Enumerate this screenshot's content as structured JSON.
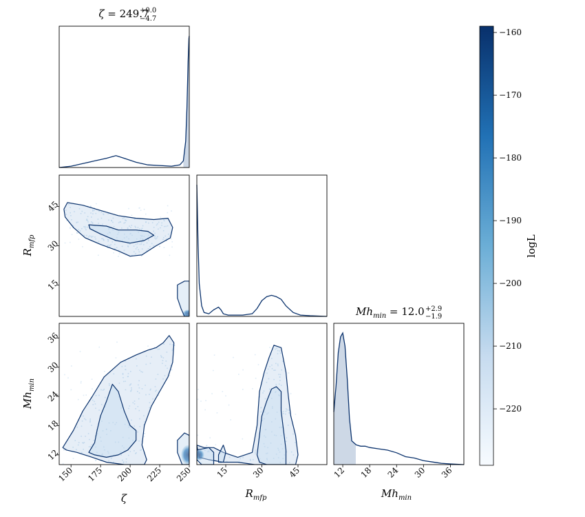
{
  "chart_data": {
    "type": "corner",
    "parameters": [
      "ζ",
      "Rmfp",
      "Mhmin"
    ],
    "axis_labels": {
      "zeta": "ζ",
      "rmfp_base": "R",
      "rmfp_sub": "mfp",
      "mh_base": "Mh",
      "mh_sub": "min"
    },
    "ranges": {
      "zeta": [
        140,
        250
      ],
      "rmfp": [
        3,
        57
      ],
      "mh": [
        10,
        39
      ]
    },
    "ticks": {
      "zeta": [
        "150",
        "175",
        "200",
        "225",
        "250"
      ],
      "rmfp_x": [
        "15",
        "30",
        "45"
      ],
      "rmfp_y": [
        "15",
        "30",
        "45"
      ],
      "mh_x": [
        "12",
        "18",
        "24",
        "30",
        "36"
      ],
      "mh_y": [
        "12",
        "18",
        "24",
        "30",
        "36"
      ]
    },
    "titles": {
      "zeta": {
        "prefix": "ζ = ",
        "value": "249.7",
        "plus": "+0.0",
        "minus": "−4.7"
      },
      "mh": {
        "prefix_base": "Mh",
        "prefix_sub": "min",
        "eq": " = ",
        "value": "12.0",
        "plus": "+2.9",
        "minus": "−1.9"
      }
    },
    "marginals": {
      "zeta": {
        "x": [
          140,
          150,
          160,
          170,
          180,
          188,
          195,
          205,
          215,
          225,
          235,
          242,
          245,
          247,
          248,
          249,
          249.7,
          250
        ],
        "density": [
          0.0,
          0.01,
          0.03,
          0.05,
          0.07,
          0.09,
          0.07,
          0.04,
          0.02,
          0.015,
          0.01,
          0.02,
          0.05,
          0.2,
          0.45,
          0.8,
          0.98,
          1.0
        ],
        "shade": [
          245.0,
          250
        ]
      },
      "rmfp": {
        "x": [
          3,
          3.5,
          4,
          5,
          6,
          8,
          10,
          12,
          13,
          14,
          16,
          18,
          22,
          26,
          28,
          30,
          32,
          34,
          36,
          38,
          40,
          43,
          46,
          50,
          57
        ],
        "density": [
          1.0,
          0.55,
          0.25,
          0.08,
          0.03,
          0.02,
          0.05,
          0.07,
          0.05,
          0.02,
          0.01,
          0.01,
          0.01,
          0.02,
          0.06,
          0.12,
          0.15,
          0.16,
          0.15,
          0.13,
          0.08,
          0.03,
          0.01,
          0.005,
          0.0
        ]
      },
      "mh": {
        "x": [
          10,
          10.5,
          11,
          11.5,
          12,
          12.5,
          13,
          13.5,
          14,
          15,
          16,
          17,
          18,
          20,
          22,
          24,
          26,
          28,
          30,
          32,
          34,
          36,
          39
        ],
        "density": [
          0.4,
          0.6,
          0.85,
          0.97,
          1.0,
          0.9,
          0.65,
          0.35,
          0.18,
          0.15,
          0.14,
          0.14,
          0.13,
          0.12,
          0.11,
          0.09,
          0.06,
          0.05,
          0.03,
          0.02,
          0.01,
          0.005,
          0.0
        ],
        "shade": [
          10,
          14.9
        ]
      }
    },
    "contours_2d": {
      "zeta_rmfp": [
        [
          [
            147,
            46.5
          ],
          [
            160,
            45.5
          ],
          [
            175,
            43.5
          ],
          [
            190,
            41.5
          ],
          [
            205,
            40.5
          ],
          [
            220,
            40
          ],
          [
            232,
            40.5
          ],
          [
            236,
            37
          ],
          [
            234,
            33
          ],
          [
            222,
            30
          ],
          [
            210,
            26.5
          ],
          [
            200,
            26
          ],
          [
            190,
            28
          ],
          [
            175,
            30.5
          ],
          [
            162,
            33
          ],
          [
            152,
            37
          ],
          [
            145,
            41
          ],
          [
            144,
            44
          ]
        ],
        [
          [
            165,
            38
          ],
          [
            180,
            37.5
          ],
          [
            190,
            36
          ],
          [
            205,
            36
          ],
          [
            215,
            35.5
          ],
          [
            220,
            34
          ],
          [
            212,
            32
          ],
          [
            200,
            31
          ],
          [
            188,
            32
          ],
          [
            175,
            34.5
          ],
          [
            166,
            36.5
          ]
        ],
        [
          [
            240,
            15
          ],
          [
            246,
            16.5
          ],
          [
            250,
            16.5
          ],
          [
            250,
            3
          ],
          [
            246,
            3
          ],
          [
            243,
            6
          ],
          [
            240,
            10
          ]
        ]
      ],
      "zeta_mh": [
        [
          [
            143,
            13.5
          ],
          [
            152,
            17
          ],
          [
            160,
            21
          ],
          [
            168,
            24
          ],
          [
            178,
            28
          ],
          [
            192,
            31
          ],
          [
            205,
            32.5
          ],
          [
            215,
            33.5
          ],
          [
            222,
            34
          ],
          [
            228,
            35
          ],
          [
            233,
            36.5
          ],
          [
            237,
            35
          ],
          [
            236,
            31
          ],
          [
            232,
            28
          ],
          [
            225,
            25
          ],
          [
            218,
            22
          ],
          [
            212,
            18
          ],
          [
            210,
            14
          ],
          [
            214,
            11
          ],
          [
            212,
            10
          ],
          [
            195,
            10
          ],
          [
            180,
            10.5
          ],
          [
            168,
            11.5
          ],
          [
            155,
            12.5
          ],
          [
            146,
            13
          ]
        ],
        [
          [
            165,
            12.5
          ],
          [
            170,
            14.5
          ],
          [
            172,
            17
          ],
          [
            175,
            20
          ],
          [
            180,
            23
          ],
          [
            185,
            26.5
          ],
          [
            190,
            25
          ],
          [
            195,
            21
          ],
          [
            200,
            18
          ],
          [
            205,
            17
          ],
          [
            205,
            15
          ],
          [
            198,
            13
          ],
          [
            190,
            12
          ],
          [
            180,
            11.5
          ],
          [
            170,
            12
          ]
        ],
        [
          [
            240,
            15
          ],
          [
            246,
            16.5
          ],
          [
            250,
            16
          ],
          [
            250,
            10
          ],
          [
            244,
            10
          ],
          [
            240,
            12.5
          ]
        ]
      ],
      "rmfp_mh": [
        [
          [
            3,
            14
          ],
          [
            6,
            13.5
          ],
          [
            10,
            13.5
          ],
          [
            14,
            12.5
          ],
          [
            20,
            11.5
          ],
          [
            26,
            12.5
          ],
          [
            28,
            18
          ],
          [
            29,
            25
          ],
          [
            31,
            29
          ],
          [
            33,
            32
          ],
          [
            35,
            34.5
          ],
          [
            38,
            34
          ],
          [
            40,
            29
          ],
          [
            41,
            24
          ],
          [
            42,
            20
          ],
          [
            44,
            16
          ],
          [
            45,
            12
          ],
          [
            44,
            10
          ],
          [
            35,
            10
          ],
          [
            27,
            10
          ],
          [
            20,
            10.5
          ],
          [
            14,
            10.5
          ],
          [
            8,
            11
          ],
          [
            4,
            11.5
          ]
        ],
        [
          [
            28,
            12
          ],
          [
            29,
            16
          ],
          [
            30,
            20
          ],
          [
            32,
            23
          ],
          [
            34,
            25.5
          ],
          [
            36,
            26
          ],
          [
            38,
            25
          ],
          [
            38,
            21
          ],
          [
            39,
            17
          ],
          [
            40,
            13
          ],
          [
            40,
            10
          ],
          [
            32,
            10
          ],
          [
            29,
            10.5
          ]
        ],
        [
          [
            3,
            13
          ],
          [
            8,
            13.5
          ],
          [
            10,
            12.5
          ],
          [
            10,
            10
          ],
          [
            5,
            10
          ],
          [
            3,
            11
          ]
        ],
        [
          [
            12,
            12
          ],
          [
            14,
            14
          ],
          [
            15,
            12.5
          ],
          [
            14,
            10.5
          ],
          [
            12,
            10.5
          ]
        ]
      ]
    },
    "colorbar": {
      "label": "logL",
      "range": [
        -229,
        -159
      ],
      "ticks": [
        "−160",
        "−170",
        "−180",
        "−190",
        "−200",
        "−210",
        "−220"
      ],
      "tick_values": [
        -160,
        -170,
        -180,
        -190,
        -200,
        -210,
        -220
      ],
      "colormap": "Blues",
      "color_light": "#f7fbff",
      "color_dark": "#08306b"
    },
    "line_color": "#08306b",
    "fill_color": "#cdd8e6"
  }
}
